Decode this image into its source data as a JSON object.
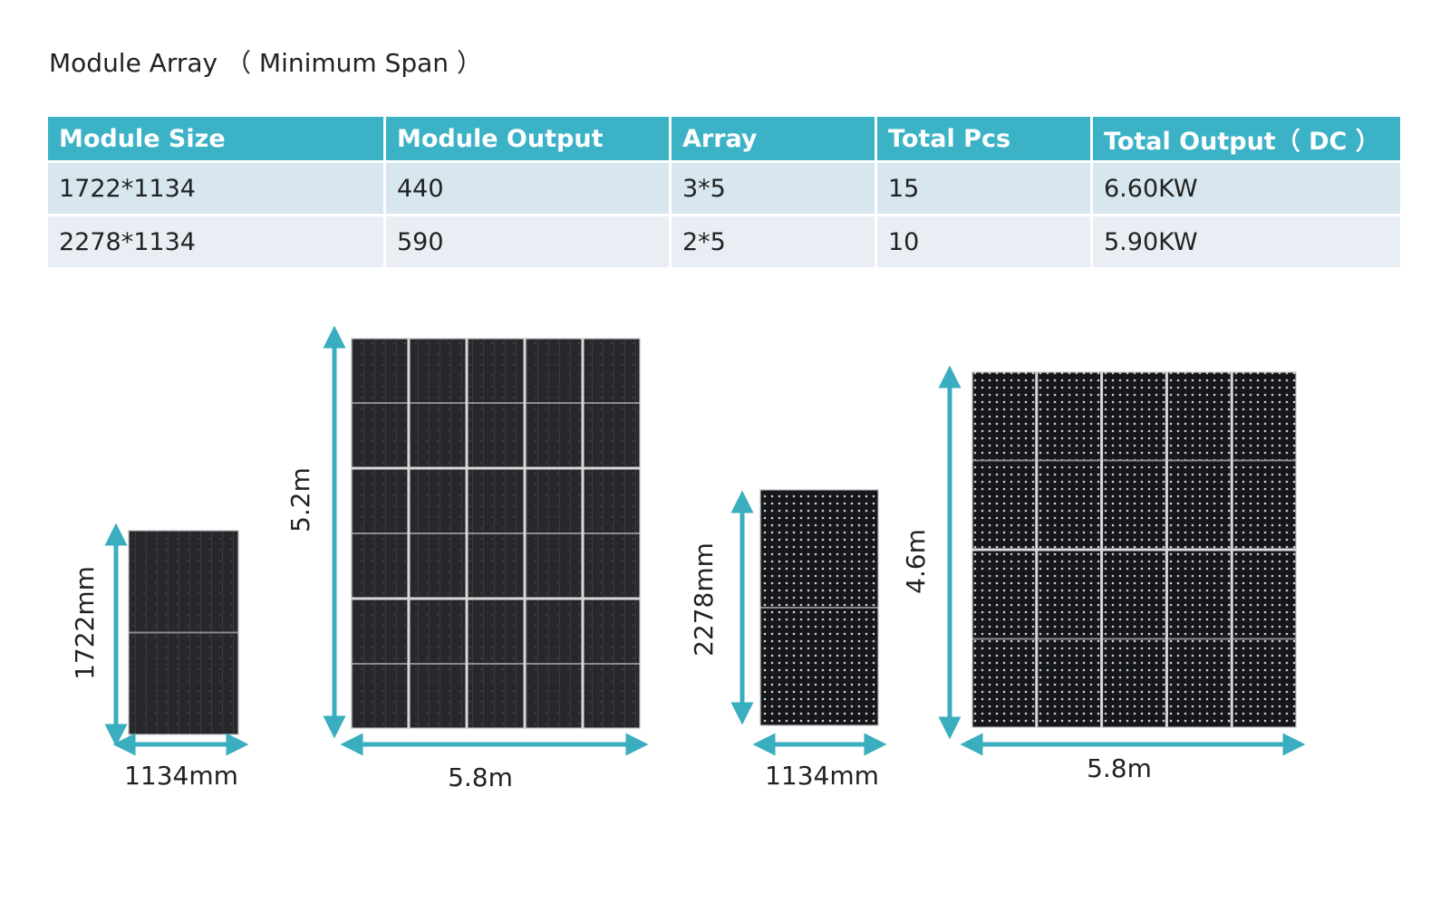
{
  "title": "Module Array （ Minimum Span ）",
  "table": {
    "header": [
      "Module Size",
      "Module Output",
      "Array",
      "Total Pcs",
      "Total Output（ DC ）"
    ],
    "rows": [
      [
        "1722*1134",
        "440",
        "3*5",
        "15",
        "6.60KW"
      ],
      [
        "2278*1134",
        "590",
        "2*5",
        "10",
        "5.90KW"
      ]
    ]
  },
  "diagrams": [
    {
      "height_label": "1722mm",
      "width_label": "1134mm"
    },
    {
      "height_label": "5.2m",
      "width_label": "5.8m"
    },
    {
      "height_label": "2278mm",
      "width_label": "1134mm"
    },
    {
      "height_label": "4.6m",
      "width_label": "5.8m"
    }
  ]
}
